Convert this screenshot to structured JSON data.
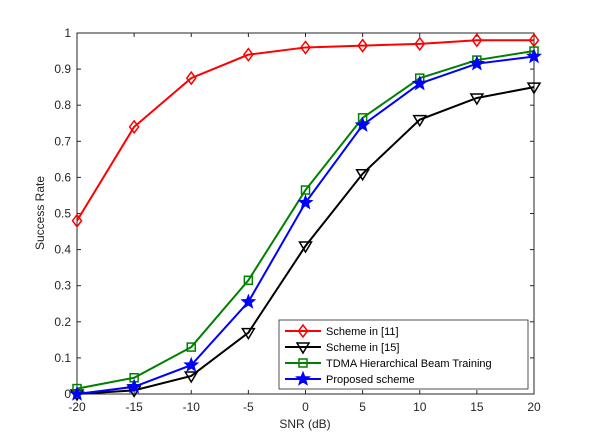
{
  "chart_data": {
    "type": "line",
    "title": "",
    "xlabel": "SNR (dB)",
    "ylabel": "Success Rate",
    "x": [
      -20,
      -15,
      -10,
      -5,
      0,
      5,
      10,
      15,
      20
    ],
    "xlim": [
      -20,
      20
    ],
    "ylim": [
      0,
      1
    ],
    "xticks": [
      "-20",
      "-15",
      "-10",
      "-5",
      "0",
      "5",
      "10",
      "15",
      "20"
    ],
    "yticks": [
      "0",
      "0.1",
      "0.2",
      "0.3",
      "0.4",
      "0.5",
      "0.6",
      "0.7",
      "0.8",
      "0.9",
      "1"
    ],
    "grid": false,
    "legend_position": "bottom-right",
    "series": [
      {
        "name": "Scheme in [11]",
        "color": "#ff0000",
        "marker": "diamond",
        "values": [
          0.48,
          0.74,
          0.875,
          0.94,
          0.96,
          0.965,
          0.97,
          0.98,
          0.98
        ]
      },
      {
        "name": "Scheme in [15]",
        "color": "#000000",
        "marker": "triangle-down",
        "values": [
          0.0,
          0.01,
          0.05,
          0.17,
          0.41,
          0.61,
          0.76,
          0.82,
          0.85
        ]
      },
      {
        "name": "TDMA Hierarchical Beam Training",
        "color": "#008000",
        "marker": "square",
        "values": [
          0.015,
          0.045,
          0.13,
          0.315,
          0.565,
          0.765,
          0.875,
          0.925,
          0.95
        ]
      },
      {
        "name": "Proposed scheme",
        "color": "#0000ff",
        "marker": "star",
        "values": [
          0.0,
          0.02,
          0.08,
          0.255,
          0.53,
          0.745,
          0.86,
          0.915,
          0.935
        ]
      }
    ]
  }
}
